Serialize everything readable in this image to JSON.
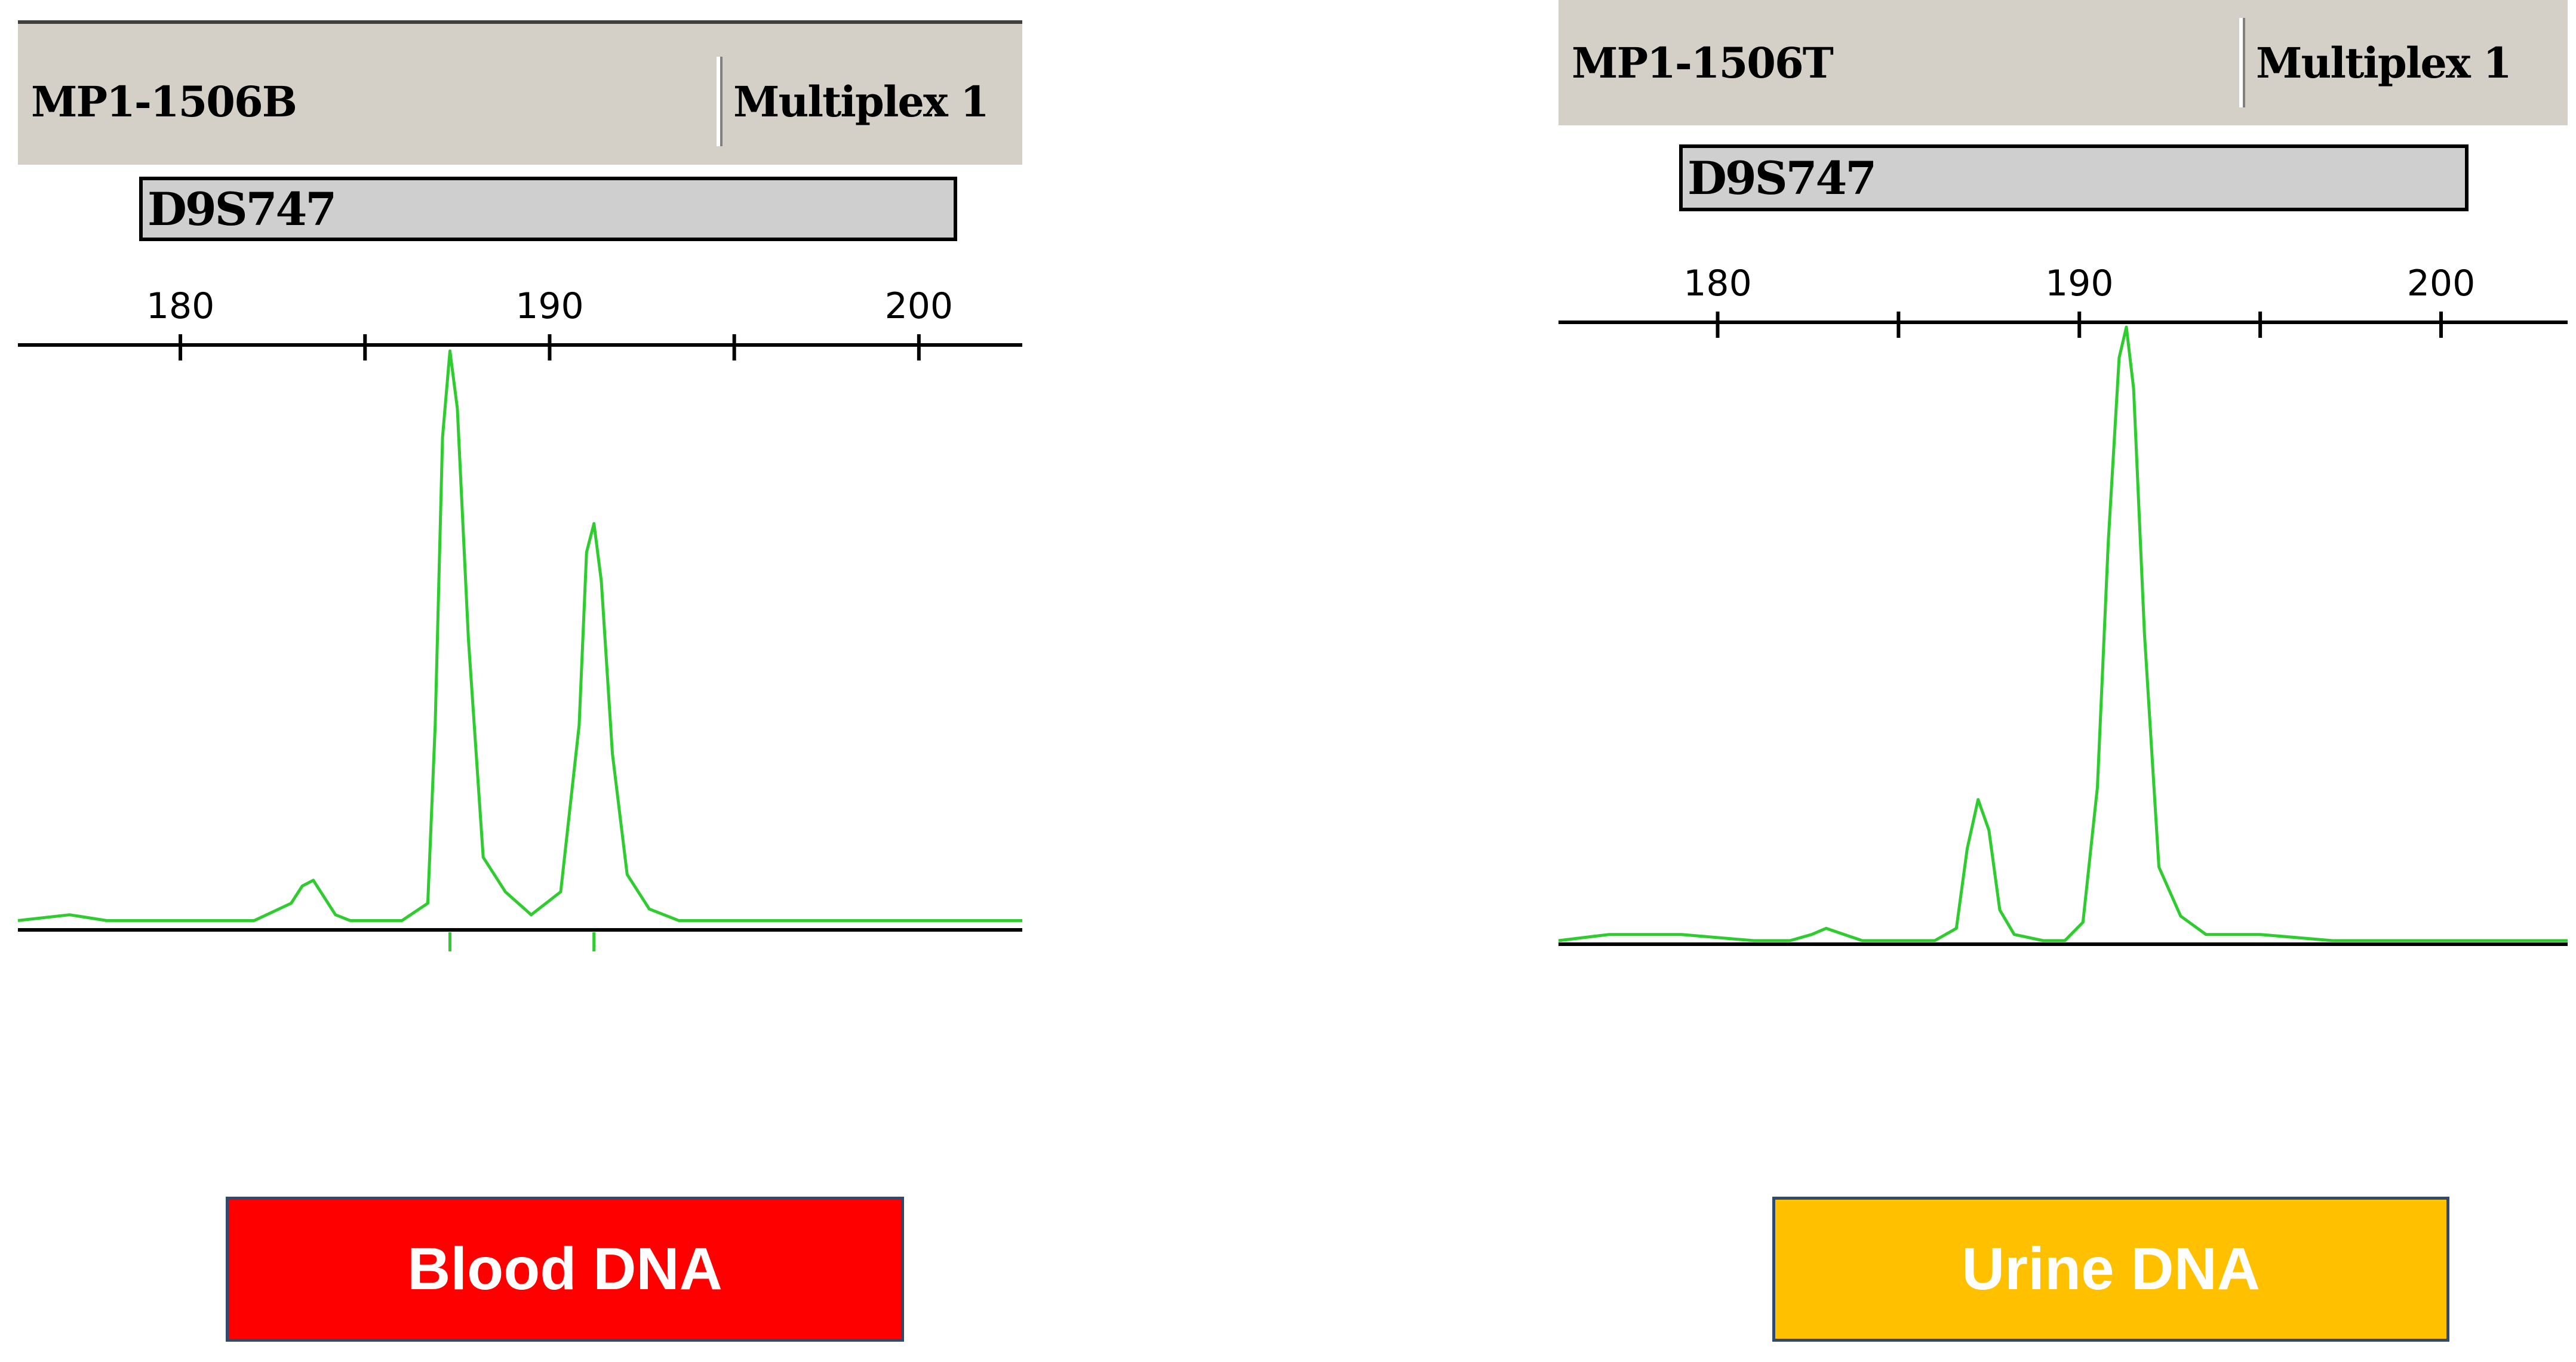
{
  "colors": {
    "trace": "#2ecc2e",
    "blood_label_bg": "#ff0000",
    "urine_label_bg": "#ffc000",
    "header_bg": "#d4d0c8",
    "marker_bg": "#cfcfcf"
  },
  "left": {
    "header": {
      "sample": "MP1-1506B",
      "multiplex": "Multiplex 1"
    },
    "marker": "D9S747",
    "caption": "Blood DNA"
  },
  "right": {
    "header": {
      "sample": "MP1-1506T",
      "multiplex": "Multiplex 1"
    },
    "marker": "D9S747",
    "caption": "Urine DNA"
  },
  "chart_data": [
    {
      "type": "line",
      "xlim": [
        175.6,
        202.8
      ],
      "x_ticks": [
        180,
        190,
        200
      ],
      "minor_ticks": [
        185,
        195
      ],
      "series": [
        {
          "x": [
            175.6,
            177,
            178,
            179,
            180,
            181,
            182,
            183,
            183.3,
            183.6,
            183.8,
            184.2,
            184.6,
            185,
            186,
            186.7,
            186.9,
            187.1,
            187.3,
            187.5,
            187.8,
            188.2,
            188.8,
            189.5,
            190.3,
            190.8,
            191.0,
            191.2,
            191.4,
            191.7,
            192.1,
            192.7,
            193.5,
            194.5,
            196,
            198,
            200,
            202.8
          ],
          "y": [
            0.01,
            0.02,
            0.01,
            0.01,
            0.01,
            0.01,
            0.01,
            0.04,
            0.07,
            0.08,
            0.06,
            0.02,
            0.01,
            0.01,
            0.01,
            0.04,
            0.35,
            0.85,
            1.0,
            0.9,
            0.5,
            0.12,
            0.06,
            0.02,
            0.06,
            0.35,
            0.65,
            0.7,
            0.6,
            0.3,
            0.09,
            0.03,
            0.01,
            0.01,
            0.01,
            0.01,
            0.01,
            0.01
          ]
        }
      ],
      "peaks_marked": [
        187.3,
        191.2
      ]
    },
    {
      "type": "line",
      "xlim": [
        175.6,
        203.5
      ],
      "x_ticks": [
        180,
        190,
        200
      ],
      "minor_ticks": [
        185,
        195
      ],
      "series": [
        {
          "x": [
            175.6,
            177,
            179,
            181,
            182,
            182.6,
            183,
            183.5,
            184,
            185,
            186,
            186.6,
            186.9,
            187.2,
            187.5,
            187.8,
            188.2,
            189,
            189.6,
            190.1,
            190.5,
            190.8,
            191.1,
            191.3,
            191.5,
            191.8,
            192.2,
            192.8,
            193.5,
            195,
            197,
            200,
            203.5
          ],
          "y": [
            0.0,
            0.01,
            0.01,
            0.0,
            0.0,
            0.01,
            0.02,
            0.01,
            0.0,
            0.0,
            0.0,
            0.02,
            0.15,
            0.23,
            0.18,
            0.05,
            0.01,
            0.0,
            0.0,
            0.03,
            0.25,
            0.65,
            0.95,
            1.0,
            0.9,
            0.5,
            0.12,
            0.04,
            0.01,
            0.01,
            0.0,
            0.0,
            0.0
          ]
        }
      ]
    }
  ]
}
